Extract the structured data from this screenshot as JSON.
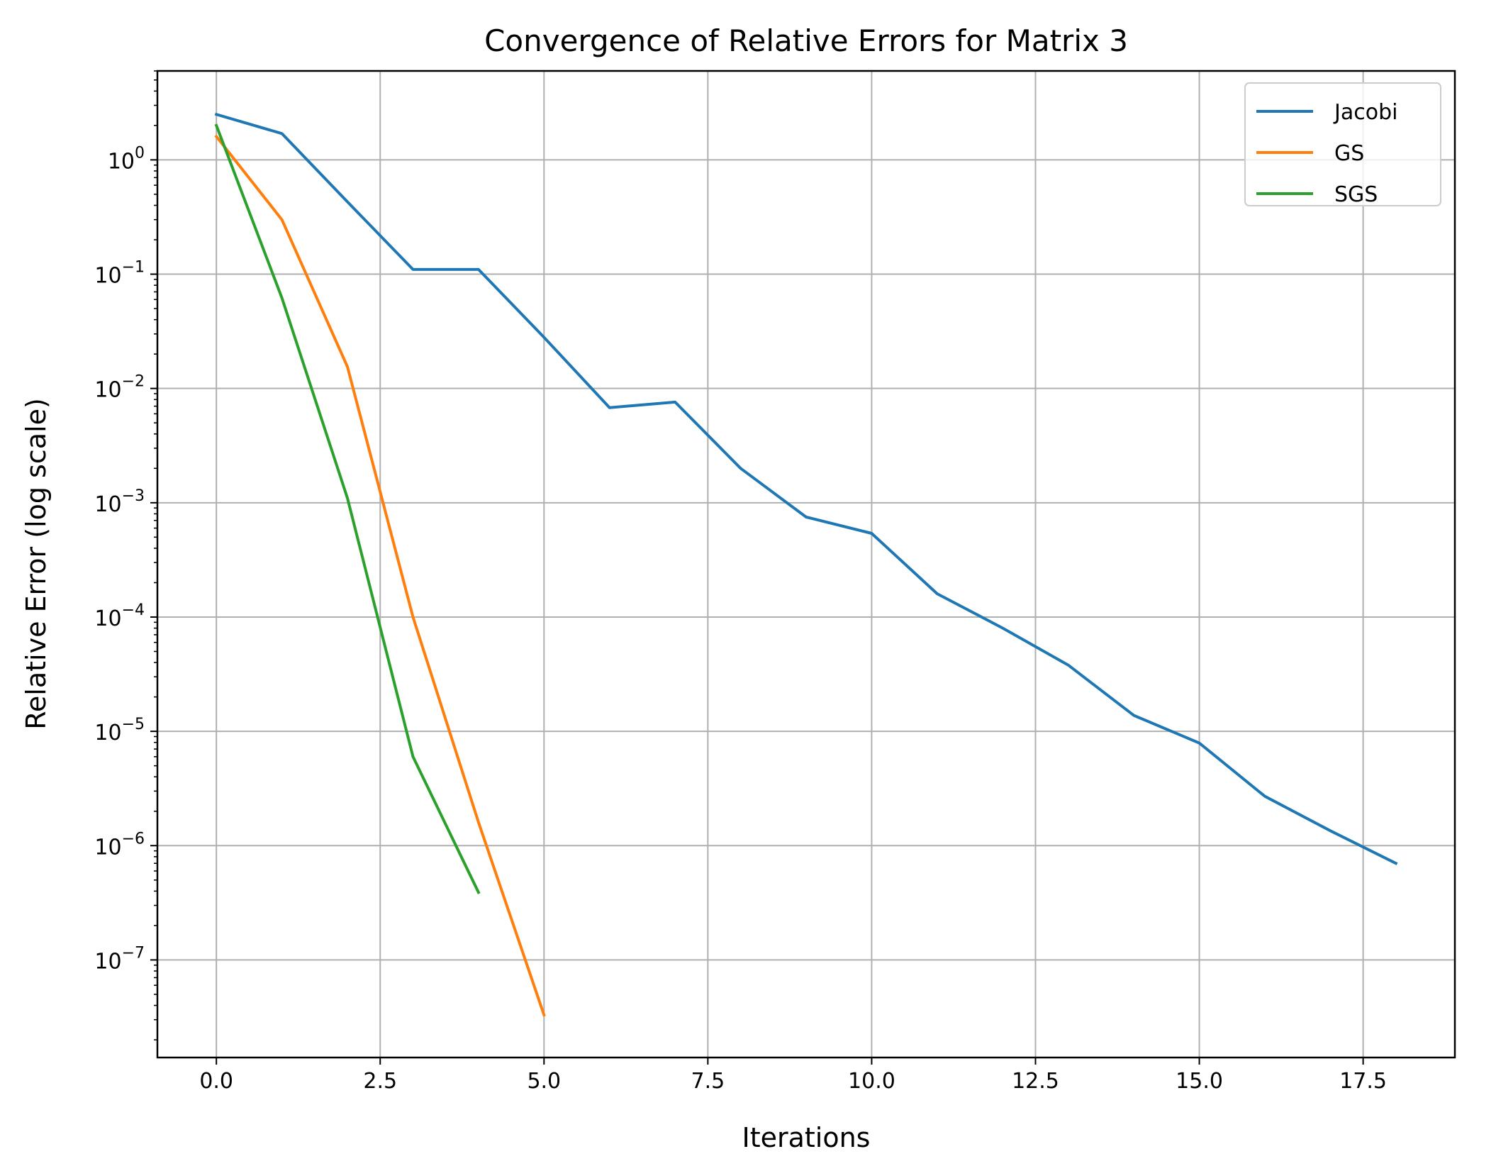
{
  "chart_data": {
    "type": "line",
    "title": "Convergence of Relative Errors for Matrix 3",
    "xlabel": "Iterations",
    "ylabel": "Relative Error (log scale)",
    "yscale": "log",
    "xlim": [
      -0.9,
      18.9
    ],
    "ylim": [
      1.4e-08,
      6
    ],
    "grid": true,
    "legend_position": "top-right",
    "x_ticks": [
      {
        "value": 0,
        "label": "0.0"
      },
      {
        "value": 2.5,
        "label": "2.5"
      },
      {
        "value": 5,
        "label": "5.0"
      },
      {
        "value": 7.5,
        "label": "7.5"
      },
      {
        "value": 10,
        "label": "10.0"
      },
      {
        "value": 12.5,
        "label": "12.5"
      },
      {
        "value": 15,
        "label": "15.0"
      },
      {
        "value": 17.5,
        "label": "17.5"
      }
    ],
    "y_ticks": [
      {
        "exp": 0,
        "base": "10",
        "sup": "0"
      },
      {
        "exp": -1,
        "base": "10",
        "sup": "−1"
      },
      {
        "exp": -2,
        "base": "10",
        "sup": "−2"
      },
      {
        "exp": -3,
        "base": "10",
        "sup": "−3"
      },
      {
        "exp": -4,
        "base": "10",
        "sup": "−4"
      },
      {
        "exp": -5,
        "base": "10",
        "sup": "−5"
      },
      {
        "exp": -6,
        "base": "10",
        "sup": "−6"
      },
      {
        "exp": -7,
        "base": "10",
        "sup": "−7"
      }
    ],
    "series": [
      {
        "name": "Jacobi",
        "color": "#1f77b4",
        "x": [
          0,
          1,
          2,
          3,
          4,
          5,
          6,
          7,
          8,
          9,
          10,
          11,
          12,
          13,
          14,
          15,
          16,
          17,
          18
        ],
        "y": [
          2.5,
          1.7,
          0.43,
          0.11,
          0.11,
          0.028,
          0.0068,
          0.0076,
          0.002,
          0.00075,
          0.00054,
          0.00016,
          8e-05,
          3.8e-05,
          1.38e-05,
          7.9e-06,
          2.7e-06,
          1.35e-06,
          7e-07
        ]
      },
      {
        "name": "GS",
        "color": "#ff7f0e",
        "x": [
          0,
          1,
          2,
          3,
          4,
          5
        ],
        "y": [
          1.6,
          0.3,
          0.0155,
          0.0001,
          1.6e-06,
          3.3e-08
        ]
      },
      {
        "name": "SGS",
        "color": "#2ca02c",
        "x": [
          0,
          1,
          2,
          3,
          4
        ],
        "y": [
          2.0,
          0.062,
          0.0011,
          6e-06,
          3.9e-07
        ]
      }
    ]
  }
}
